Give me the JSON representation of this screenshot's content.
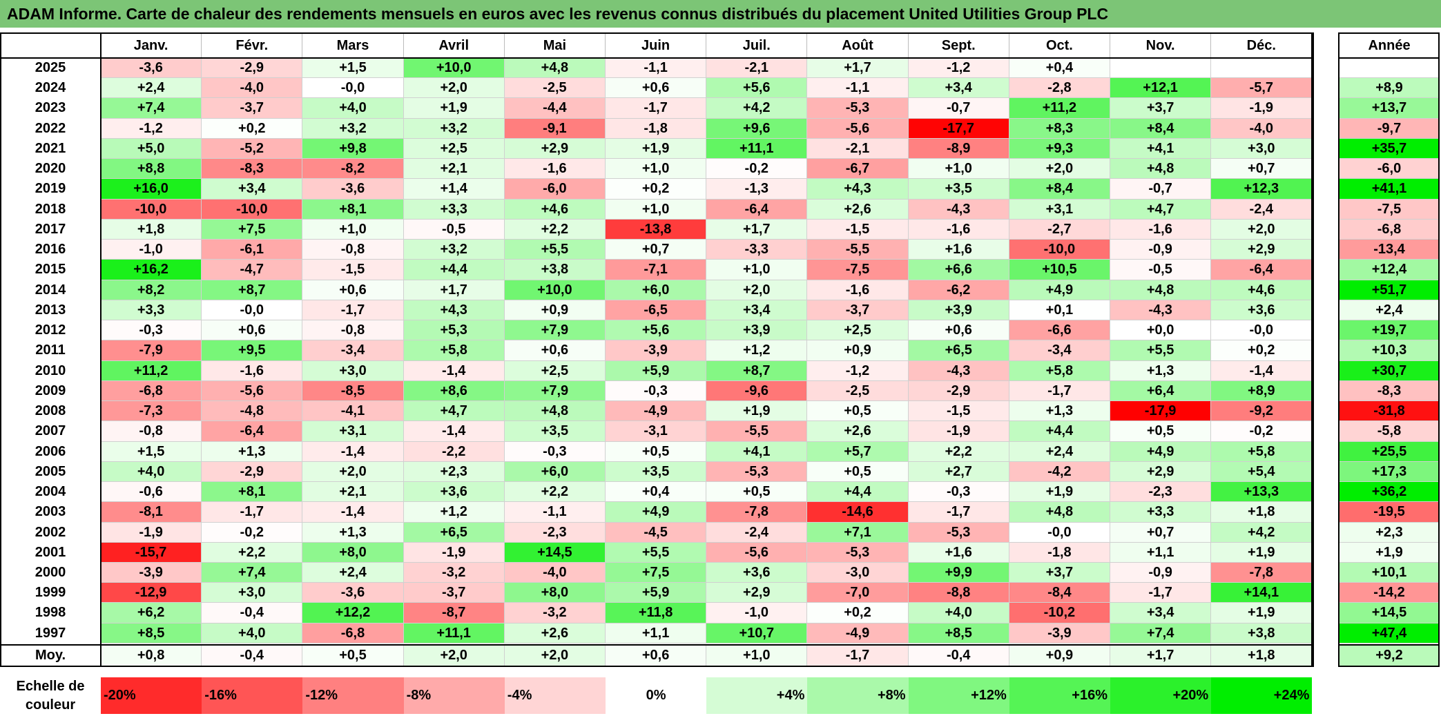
{
  "title": "ADAM Informe. Carte de chaleur des rendements mensuels en euros avec les revenus connus distribués du placement United Utilities Group PLC",
  "chart_data": {
    "type": "heatmap",
    "title": "ADAM Informe. Carte de chaleur des rendements mensuels en euros avec les revenus connus distribués du placement United Utilities Group PLC",
    "columns": [
      "Janv.",
      "Févr.",
      "Mars",
      "Avril",
      "Mai",
      "Juin",
      "Juil.",
      "Août",
      "Sept.",
      "Oct.",
      "Nov.",
      "Déc."
    ],
    "annual_header": "Année",
    "rows": [
      {
        "year": "2025",
        "values": [
          "-3,6",
          "-2,9",
          "+1,5",
          "+10,0",
          "+4,8",
          "-1,1",
          "-2,1",
          "+1,7",
          "-1,2",
          "+0,4",
          "",
          ""
        ],
        "annual": ""
      },
      {
        "year": "2024",
        "values": [
          "+2,4",
          "-4,0",
          "-0,0",
          "+2,0",
          "-2,5",
          "+0,6",
          "+5,6",
          "-1,1",
          "+3,4",
          "-2,8",
          "+12,1",
          "-5,7"
        ],
        "annual": "+8,9"
      },
      {
        "year": "2023",
        "values": [
          "+7,4",
          "-3,7",
          "+4,0",
          "+1,9",
          "-4,4",
          "-1,7",
          "+4,2",
          "-5,3",
          "-0,7",
          "+11,2",
          "+3,7",
          "-1,9"
        ],
        "annual": "+13,7"
      },
      {
        "year": "2022",
        "values": [
          "-1,2",
          "+0,2",
          "+3,2",
          "+3,2",
          "-9,1",
          "-1,8",
          "+9,6",
          "-5,6",
          "-17,7",
          "+8,3",
          "+8,4",
          "-4,0"
        ],
        "annual": "-9,7"
      },
      {
        "year": "2021",
        "values": [
          "+5,0",
          "-5,2",
          "+9,8",
          "+2,5",
          "+2,9",
          "+1,9",
          "+11,1",
          "-2,1",
          "-8,9",
          "+9,3",
          "+4,1",
          "+3,0"
        ],
        "annual": "+35,7"
      },
      {
        "year": "2020",
        "values": [
          "+8,8",
          "-8,3",
          "-8,2",
          "+2,1",
          "-1,6",
          "+1,0",
          "-0,2",
          "-6,7",
          "+1,0",
          "+2,0",
          "+4,8",
          "+0,7"
        ],
        "annual": "-6,0"
      },
      {
        "year": "2019",
        "values": [
          "+16,0",
          "+3,4",
          "-3,6",
          "+1,4",
          "-6,0",
          "+0,2",
          "-1,3",
          "+4,3",
          "+3,5",
          "+8,4",
          "-0,7",
          "+12,3"
        ],
        "annual": "+41,1"
      },
      {
        "year": "2018",
        "values": [
          "-10,0",
          "-10,0",
          "+8,1",
          "+3,3",
          "+4,6",
          "+1,0",
          "-6,4",
          "+2,6",
          "-4,3",
          "+3,1",
          "+4,7",
          "-2,4"
        ],
        "annual": "-7,5"
      },
      {
        "year": "2017",
        "values": [
          "+1,8",
          "+7,5",
          "+1,0",
          "-0,5",
          "+2,2",
          "-13,8",
          "+1,7",
          "-1,5",
          "-1,6",
          "-2,7",
          "-1,6",
          "+2,0"
        ],
        "annual": "-6,8"
      },
      {
        "year": "2016",
        "values": [
          "-1,0",
          "-6,1",
          "-0,8",
          "+3,2",
          "+5,5",
          "+0,7",
          "-3,3",
          "-5,5",
          "+1,6",
          "-10,0",
          "-0,9",
          "+2,9"
        ],
        "annual": "-13,4"
      },
      {
        "year": "2015",
        "values": [
          "+16,2",
          "-4,7",
          "-1,5",
          "+4,4",
          "+3,8",
          "-7,1",
          "+1,0",
          "-7,5",
          "+6,6",
          "+10,5",
          "-0,5",
          "-6,4"
        ],
        "annual": "+12,4"
      },
      {
        "year": "2014",
        "values": [
          "+8,2",
          "+8,7",
          "+0,6",
          "+1,7",
          "+10,0",
          "+6,0",
          "+2,0",
          "-1,6",
          "-6,2",
          "+4,9",
          "+4,8",
          "+4,6"
        ],
        "annual": "+51,7"
      },
      {
        "year": "2013",
        "values": [
          "+3,3",
          "-0,0",
          "-1,7",
          "+4,3",
          "+0,9",
          "-6,5",
          "+3,4",
          "-3,7",
          "+3,9",
          "+0,1",
          "-4,3",
          "+3,6"
        ],
        "annual": "+2,4"
      },
      {
        "year": "2012",
        "values": [
          "-0,3",
          "+0,6",
          "-0,8",
          "+5,3",
          "+7,9",
          "+5,6",
          "+3,9",
          "+2,5",
          "+0,6",
          "-6,6",
          "+0,0",
          "-0,0"
        ],
        "annual": "+19,7"
      },
      {
        "year": "2011",
        "values": [
          "-7,9",
          "+9,5",
          "-3,4",
          "+5,8",
          "+0,6",
          "-3,9",
          "+1,2",
          "+0,9",
          "+6,5",
          "-3,4",
          "+5,5",
          "+0,2"
        ],
        "annual": "+10,3"
      },
      {
        "year": "2010",
        "values": [
          "+11,2",
          "-1,6",
          "+3,0",
          "-1,4",
          "+2,5",
          "+5,9",
          "+8,7",
          "-1,2",
          "-4,3",
          "+5,8",
          "+1,3",
          "-1,4"
        ],
        "annual": "+30,7"
      },
      {
        "year": "2009",
        "values": [
          "-6,8",
          "-5,6",
          "-8,5",
          "+8,6",
          "+7,9",
          "-0,3",
          "-9,6",
          "-2,5",
          "-2,9",
          "-1,7",
          "+6,4",
          "+8,9"
        ],
        "annual": "-8,3"
      },
      {
        "year": "2008",
        "values": [
          "-7,3",
          "-4,8",
          "-4,1",
          "+4,7",
          "+4,8",
          "-4,9",
          "+1,9",
          "+0,5",
          "-1,5",
          "+1,3",
          "-17,9",
          "-9,2"
        ],
        "annual": "-31,8"
      },
      {
        "year": "2007",
        "values": [
          "-0,8",
          "-6,4",
          "+3,1",
          "-1,4",
          "+3,5",
          "-3,1",
          "-5,5",
          "+2,6",
          "-1,9",
          "+4,4",
          "+0,5",
          "-0,2"
        ],
        "annual": "-5,8"
      },
      {
        "year": "2006",
        "values": [
          "+1,5",
          "+1,3",
          "-1,4",
          "-2,2",
          "-0,3",
          "+0,5",
          "+4,1",
          "+5,7",
          "+2,2",
          "+2,4",
          "+4,9",
          "+5,8"
        ],
        "annual": "+25,5"
      },
      {
        "year": "2005",
        "values": [
          "+4,0",
          "-2,9",
          "+2,0",
          "+2,3",
          "+6,0",
          "+3,5",
          "-5,3",
          "+0,5",
          "+2,7",
          "-4,2",
          "+2,9",
          "+5,4"
        ],
        "annual": "+17,3"
      },
      {
        "year": "2004",
        "values": [
          "-0,6",
          "+8,1",
          "+2,1",
          "+3,6",
          "+2,2",
          "+0,4",
          "+0,5",
          "+4,4",
          "-0,3",
          "+1,9",
          "-2,3",
          "+13,3"
        ],
        "annual": "+36,2"
      },
      {
        "year": "2003",
        "values": [
          "-8,1",
          "-1,7",
          "-1,4",
          "+1,2",
          "-1,1",
          "+4,9",
          "-7,8",
          "-14,6",
          "-1,7",
          "+4,8",
          "+3,3",
          "+1,8"
        ],
        "annual": "-19,5"
      },
      {
        "year": "2002",
        "values": [
          "-1,9",
          "-0,2",
          "+1,3",
          "+6,5",
          "-2,3",
          "-4,5",
          "-2,4",
          "+7,1",
          "-5,3",
          "-0,0",
          "+0,7",
          "+4,2"
        ],
        "annual": "+2,3"
      },
      {
        "year": "2001",
        "values": [
          "-15,7",
          "+2,2",
          "+8,0",
          "-1,9",
          "+14,5",
          "+5,5",
          "-5,6",
          "-5,3",
          "+1,6",
          "-1,8",
          "+1,1",
          "+1,9"
        ],
        "annual": "+1,9"
      },
      {
        "year": "2000",
        "values": [
          "-3,9",
          "+7,4",
          "+2,4",
          "-3,2",
          "-4,0",
          "+7,5",
          "+3,6",
          "-3,0",
          "+9,9",
          "+3,7",
          "-0,9",
          "-7,8"
        ],
        "annual": "+10,1"
      },
      {
        "year": "1999",
        "values": [
          "-12,9",
          "+3,0",
          "-3,6",
          "-3,7",
          "+8,0",
          "+5,9",
          "+2,9",
          "-7,0",
          "-8,8",
          "-8,4",
          "-1,7",
          "+14,1"
        ],
        "annual": "-14,2"
      },
      {
        "year": "1998",
        "values": [
          "+6,2",
          "-0,4",
          "+12,2",
          "-8,7",
          "-3,2",
          "+11,8",
          "-1,0",
          "+0,2",
          "+4,0",
          "-10,2",
          "+3,4",
          "+1,9"
        ],
        "annual": "+14,5"
      },
      {
        "year": "1997",
        "values": [
          "+8,5",
          "+4,0",
          "-6,8",
          "+11,1",
          "+2,6",
          "+1,1",
          "+10,7",
          "-4,9",
          "+8,5",
          "-3,9",
          "+7,4",
          "+3,8"
        ],
        "annual": "+47,4"
      }
    ],
    "average": {
      "label": "Moy.",
      "values": [
        "+0,8",
        "-0,4",
        "+0,5",
        "+2,0",
        "+2,0",
        "+0,6",
        "+1,0",
        "-1,7",
        "-0,4",
        "+0,9",
        "+1,7",
        "+1,8"
      ],
      "annual": "+9,2"
    },
    "legend": {
      "title": "Echelle de couleur",
      "items": [
        "-20%",
        "-16%",
        "-12%",
        "-8%",
        "-4%",
        "0%",
        "+4%",
        "+8%",
        "+12%",
        "+16%",
        "+20%",
        "+24%"
      ]
    },
    "colors": {
      "negative_max": "#ff0000",
      "neutral": "#ffffff",
      "positive_max": "#00ee00",
      "title_bar": "#7cc576"
    }
  }
}
